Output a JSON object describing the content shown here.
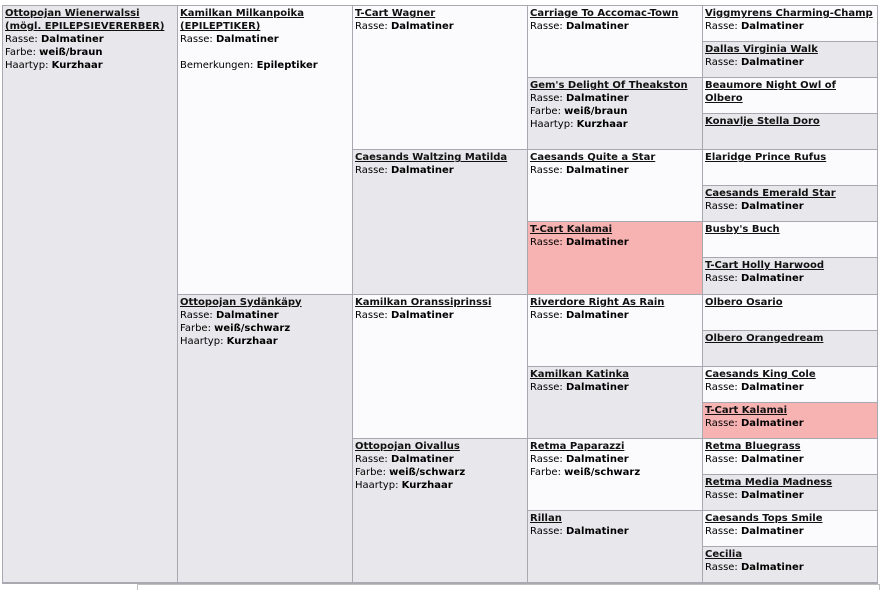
{
  "generations": [
    [
      {
        "name": "Ottopojan Wienerwalssi (mögl. EPILEPSIEVERERBER)",
        "fields": [
          {
            "label": "Rasse:",
            "value": "Dalmatiner"
          },
          {
            "label": "Farbe:",
            "value": "weiß/braun"
          },
          {
            "label": "Haartyp:",
            "value": "Kurzhaar"
          }
        ]
      }
    ],
    [
      {
        "name": "Kamilkan Milkanpoika (EPILEPTIKER)",
        "fields": [
          {
            "label": "Rasse:",
            "value": "Dalmatiner"
          }
        ],
        "remark": {
          "label": "Bemerkungen:",
          "value": "Epileptiker"
        }
      },
      {
        "name": "Ottopojan Sydänkäpy",
        "fields": [
          {
            "label": "Rasse:",
            "value": "Dalmatiner"
          },
          {
            "label": "Farbe:",
            "value": "weiß/schwarz"
          },
          {
            "label": "Haartyp:",
            "value": "Kurzhaar"
          }
        ]
      }
    ],
    [
      {
        "name": "T-Cart Wagner",
        "fields": [
          {
            "label": "Rasse:",
            "value": "Dalmatiner"
          }
        ]
      },
      {
        "name": "Caesands Waltzing Matilda",
        "fields": [
          {
            "label": "Rasse:",
            "value": "Dalmatiner"
          }
        ]
      },
      {
        "name": "Kamilkan Oranssiprinssi",
        "fields": [
          {
            "label": "Rasse:",
            "value": "Dalmatiner"
          }
        ]
      },
      {
        "name": "Ottopojan Oivallus",
        "fields": [
          {
            "label": "Rasse:",
            "value": "Dalmatiner"
          },
          {
            "label": "Farbe:",
            "value": "weiß/schwarz"
          },
          {
            "label": "Haartyp:",
            "value": "Kurzhaar"
          }
        ]
      }
    ],
    [
      {
        "name": "Carriage To Accomac-Town",
        "fields": [
          {
            "label": "Rasse:",
            "value": "Dalmatiner"
          }
        ]
      },
      {
        "name": "Gem's Delight Of Theakston",
        "fields": [
          {
            "label": "Rasse:",
            "value": "Dalmatiner"
          },
          {
            "label": "Farbe:",
            "value": "weiß/braun"
          },
          {
            "label": "Haartyp:",
            "value": "Kurzhaar"
          }
        ]
      },
      {
        "name": "Caesands Quite a Star",
        "fields": [
          {
            "label": "Rasse:",
            "value": "Dalmatiner"
          }
        ]
      },
      {
        "name": "T-Cart Kalamai",
        "highlighted": true,
        "fields": [
          {
            "label": "Rasse:",
            "value": "Dalmatiner"
          }
        ]
      },
      {
        "name": "Riverdore Right As Rain",
        "fields": [
          {
            "label": "Rasse:",
            "value": "Dalmatiner"
          }
        ]
      },
      {
        "name": "Kamilkan Katinka",
        "fields": [
          {
            "label": "Rasse:",
            "value": "Dalmatiner"
          }
        ]
      },
      {
        "name": "Retma Paparazzi",
        "fields": [
          {
            "label": "Rasse:",
            "value": "Dalmatiner"
          },
          {
            "label": "Farbe:",
            "value": "weiß/schwarz"
          }
        ]
      },
      {
        "name": "Rillan",
        "fields": [
          {
            "label": "Rasse:",
            "value": "Dalmatiner"
          }
        ]
      }
    ],
    [
      {
        "name": "Viggmyrens Charming-Champ",
        "fields": [
          {
            "label": "Rasse:",
            "value": "Dalmatiner"
          }
        ]
      },
      {
        "name": "Dallas Virginia Walk",
        "fields": [
          {
            "label": "Rasse:",
            "value": "Dalmatiner"
          }
        ]
      },
      {
        "name": "Beaumore Night Owl of Olbero",
        "fields": []
      },
      {
        "name": "Konavlje Stella Doro",
        "fields": []
      },
      {
        "name": "Elaridge Prince Rufus",
        "fields": []
      },
      {
        "name": "Caesands Emerald Star",
        "fields": [
          {
            "label": "Rasse:",
            "value": "Dalmatiner"
          }
        ]
      },
      {
        "name": "Busby's Buch",
        "fields": []
      },
      {
        "name": "T-Cart Holly Harwood",
        "fields": [
          {
            "label": "Rasse:",
            "value": "Dalmatiner"
          }
        ]
      },
      {
        "name": "Olbero Osario",
        "fields": []
      },
      {
        "name": "Olbero Orangedream",
        "fields": []
      },
      {
        "name": "Caesands King Cole",
        "fields": [
          {
            "label": "Rasse:",
            "value": "Dalmatiner"
          }
        ]
      },
      {
        "name": "T-Cart Kalamai",
        "highlighted": true,
        "fields": [
          {
            "label": "Rasse:",
            "value": "Dalmatiner"
          }
        ]
      },
      {
        "name": "Retma Bluegrass",
        "fields": [
          {
            "label": "Rasse:",
            "value": "Dalmatiner"
          }
        ]
      },
      {
        "name": "Retma Media Madness",
        "fields": [
          {
            "label": "Rasse:",
            "value": "Dalmatiner"
          }
        ]
      },
      {
        "name": "Caesands Tops Smile",
        "fields": [
          {
            "label": "Rasse:",
            "value": "Dalmatiner"
          }
        ]
      },
      {
        "name": "Cecilia",
        "fields": [
          {
            "label": "Rasse:",
            "value": "Dalmatiner"
          }
        ]
      }
    ]
  ]
}
